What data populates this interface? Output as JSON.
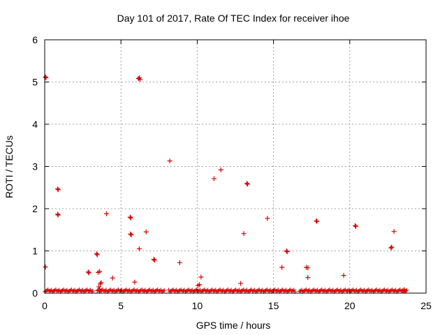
{
  "chart_data": {
    "type": "scatter",
    "title": "Day 101 of 2017, Rate Of TEC Index for receiver ihoe",
    "xlabel": "GPS time / hours",
    "ylabel": "ROTI / TECUs",
    "xlim": [
      0,
      25
    ],
    "ylim": [
      0,
      6
    ],
    "xticks": [
      "0",
      "5",
      "10",
      "15",
      "20",
      "25"
    ],
    "yticks": [
      "0",
      "1",
      "2",
      "3",
      "4",
      "5",
      "6"
    ],
    "grid": true,
    "marker": "+",
    "color": "#e00000",
    "series": [
      {
        "points": [
          [
            0.05,
            5.12
          ],
          [
            0.08,
            5.1
          ],
          [
            0.05,
            0.62
          ],
          [
            0.85,
            2.47
          ],
          [
            0.88,
            2.45
          ],
          [
            0.85,
            1.87
          ],
          [
            0.88,
            1.85
          ],
          [
            2.85,
            0.5
          ],
          [
            2.9,
            0.48
          ],
          [
            3.4,
            0.93
          ],
          [
            3.45,
            0.91
          ],
          [
            3.5,
            0.49
          ],
          [
            3.6,
            0.51
          ],
          [
            3.55,
            0.15
          ],
          [
            3.65,
            0.22
          ],
          [
            3.7,
            0.25
          ],
          [
            3.6,
            0.1
          ],
          [
            4.05,
            1.88
          ],
          [
            4.45,
            0.36
          ],
          [
            5.6,
            1.8
          ],
          [
            5.65,
            1.78
          ],
          [
            5.62,
            1.4
          ],
          [
            5.68,
            1.38
          ],
          [
            5.9,
            0.26
          ],
          [
            6.15,
            5.08
          ],
          [
            6.2,
            5.1
          ],
          [
            6.25,
            5.06
          ],
          [
            6.2,
            1.05
          ],
          [
            6.65,
            1.45
          ],
          [
            7.15,
            0.8
          ],
          [
            7.2,
            0.78
          ],
          [
            8.2,
            3.13
          ],
          [
            8.85,
            0.72
          ],
          [
            10.05,
            0.18
          ],
          [
            10.15,
            0.2
          ],
          [
            10.25,
            0.38
          ],
          [
            11.1,
            2.71
          ],
          [
            11.55,
            2.92
          ],
          [
            12.85,
            0.23
          ],
          [
            13.05,
            1.41
          ],
          [
            13.25,
            2.6
          ],
          [
            13.3,
            2.58
          ],
          [
            14.6,
            1.77
          ],
          [
            15.55,
            0.61
          ],
          [
            15.85,
            1.0
          ],
          [
            15.9,
            0.98
          ],
          [
            17.15,
            0.61
          ],
          [
            17.25,
            0.6
          ],
          [
            17.25,
            0.37
          ],
          [
            17.8,
            1.71
          ],
          [
            17.85,
            1.7
          ],
          [
            19.6,
            0.42
          ],
          [
            20.35,
            1.6
          ],
          [
            20.4,
            1.58
          ],
          [
            22.7,
            1.07
          ],
          [
            22.75,
            1.09
          ],
          [
            22.9,
            1.46
          ],
          [
            23.5,
            0.05
          ],
          [
            23.6,
            0.08
          ]
        ]
      }
    ],
    "baseline_band": {
      "x_start": 0,
      "x_end": 23.8,
      "value_range": [
        0,
        0.06
      ]
    }
  }
}
